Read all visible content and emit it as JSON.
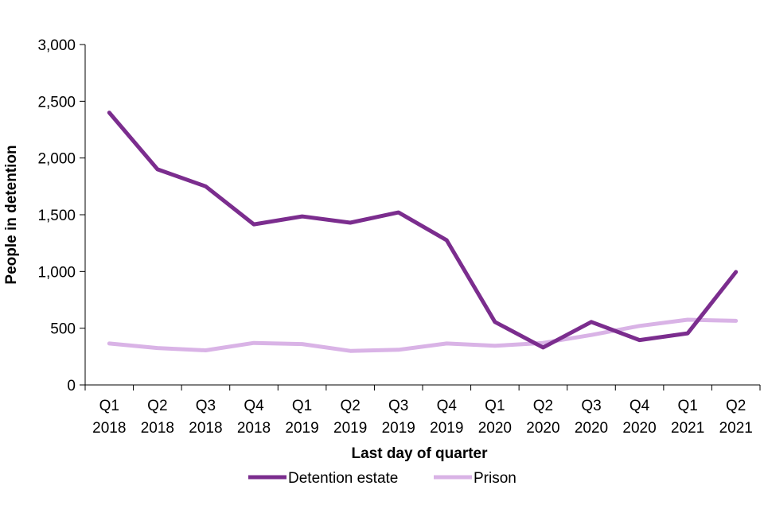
{
  "chart_data": {
    "type": "line",
    "title": "",
    "xlabel": "Last day of quarter",
    "ylabel": "People in detention",
    "ylim": [
      0,
      3000
    ],
    "yticks": [
      0,
      500,
      1000,
      1500,
      2000,
      2500,
      3000
    ],
    "ytick_labels": [
      "0",
      "500",
      "1,000",
      "1,500",
      "2,000",
      "2,500",
      "3,000"
    ],
    "categories": [
      [
        "Q1",
        "2018"
      ],
      [
        "Q2",
        "2018"
      ],
      [
        "Q3",
        "2018"
      ],
      [
        "Q4",
        "2018"
      ],
      [
        "Q1",
        "2019"
      ],
      [
        "Q2",
        "2019"
      ],
      [
        "Q3",
        "2019"
      ],
      [
        "Q4",
        "2019"
      ],
      [
        "Q1",
        "2020"
      ],
      [
        "Q2",
        "2020"
      ],
      [
        "Q3",
        "2020"
      ],
      [
        "Q4",
        "2020"
      ],
      [
        "Q1",
        "2021"
      ],
      [
        "Q2",
        "2021"
      ]
    ],
    "series": [
      {
        "name": "Detention estate",
        "color": "#7b2d8e",
        "values": [
          2400,
          1900,
          1750,
          1415,
          1485,
          1430,
          1520,
          1275,
          555,
          330,
          555,
          395,
          455,
          995
        ]
      },
      {
        "name": "Prison",
        "color": "#d9b3e6",
        "values": [
          365,
          325,
          305,
          370,
          360,
          300,
          310,
          365,
          345,
          370,
          440,
          520,
          575,
          565
        ]
      }
    ],
    "grid": false,
    "legend": "bottom"
  }
}
